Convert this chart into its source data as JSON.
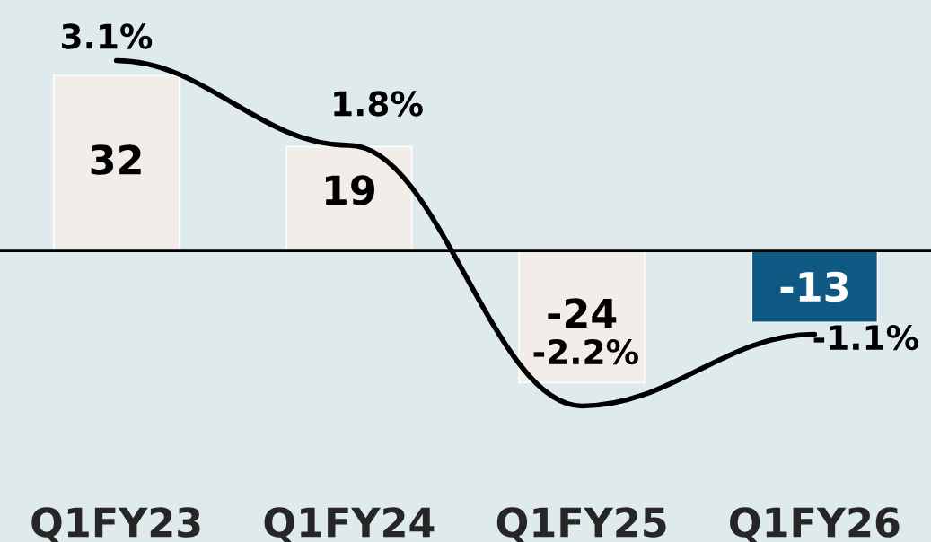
{
  "chart_data": {
    "type": "bar",
    "categories": [
      "Q1FY23",
      "Q1FY24",
      "Q1FY25",
      "Q1FY26"
    ],
    "series": [
      {
        "colors": [
          "#f2ede8",
          "#f2ede8",
          "#f2ede8",
          "#0e5a85"
        ],
        "values": [
          32,
          19,
          -24,
          -13
        ],
        "value_labels": [
          "32",
          "19",
          "-24",
          "-13"
        ]
      },
      {
        "type": "line",
        "axis": "y2",
        "color": "#000000",
        "values": [
          3.1,
          1.8,
          -2.2,
          -1.1
        ],
        "value_labels": [
          "3.1%",
          "1.8%",
          "-2.2%",
          "-1.1%"
        ],
        "marker": "none",
        "line_style": "solid"
      }
    ],
    "tick_labels": "x",
    "grid": false,
    "legend": false
  }
}
